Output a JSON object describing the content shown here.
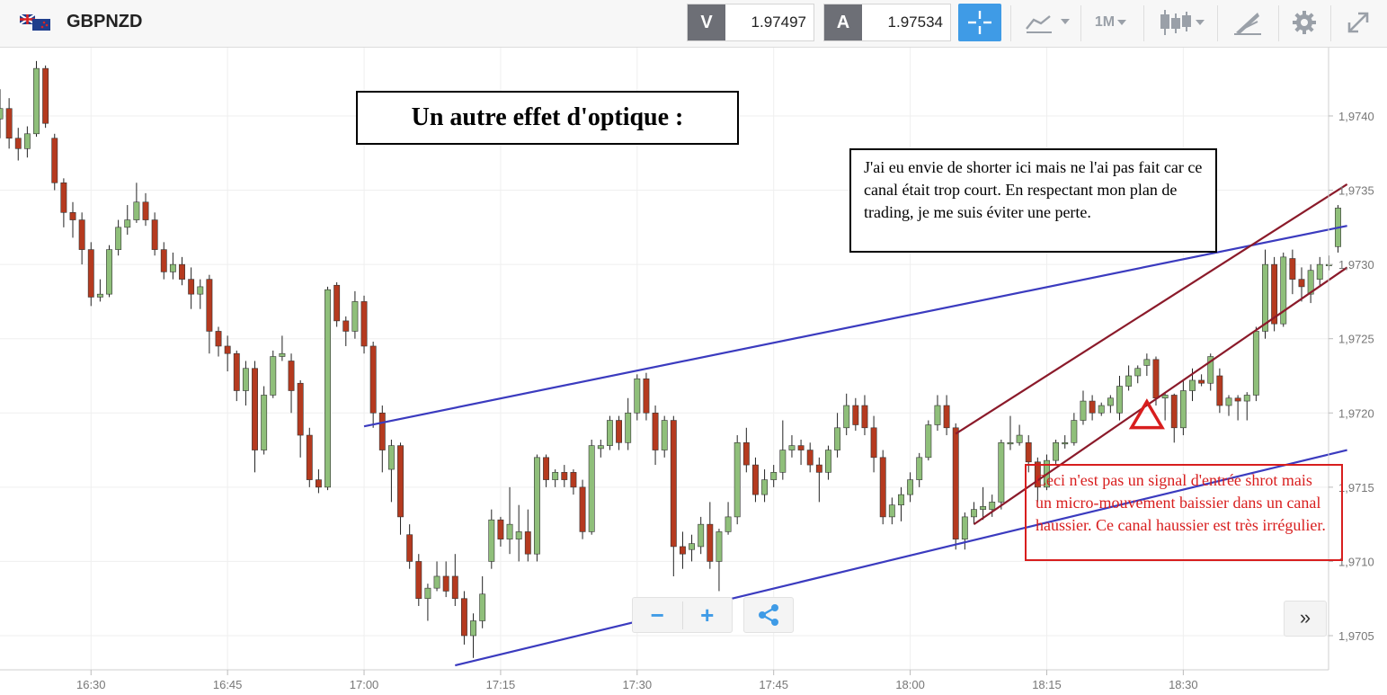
{
  "toolbar": {
    "symbol": "GBPNZD",
    "bid_label": "V",
    "bid_price": "1.97497",
    "ask_label": "A",
    "ask_price": "1.97534",
    "timeframe": "1M",
    "icons": [
      "flag-gb-nz-icon",
      "crosshair-icon",
      "line-chart-icon",
      "candlestick-icon",
      "drawing-tools-icon",
      "gear-icon",
      "fullscreen-icon"
    ]
  },
  "chart_data": {
    "type": "candlestick",
    "symbol": "GBPNZD",
    "interval": "1 minute",
    "current_price_label": "1,97497",
    "y_ticks": [
      "1,9740",
      "1,9735",
      "1,9730",
      "1,9725",
      "1,9720",
      "1,9715",
      "1,9710",
      "1,9705"
    ],
    "x_ticks": [
      "16:30",
      "16:45",
      "17:00",
      "17:15",
      "17:30",
      "17:45",
      "18:00",
      "18:15",
      "18:30"
    ],
    "ylim": [
      1.97027,
      1.97446
    ],
    "x_range": [
      "16:20",
      "18:43"
    ],
    "colors": {
      "up": "#8fbf7a",
      "down": "#b53a1f",
      "wick": "#222222",
      "channel_blue": "#3b3bbf",
      "channel_red": "#8b1a2a",
      "annotation_red": "#d81e1e",
      "price_tag": "#5aaee6"
    },
    "candles": [
      [
        "16:20",
        1.97398,
        1.97405,
        1.97385,
        1.97418
      ],
      [
        "16:21",
        1.97405,
        1.97385,
        1.97378,
        1.97412
      ],
      [
        "16:22",
        1.97385,
        1.97378,
        1.9737,
        1.97392
      ],
      [
        "16:23",
        1.97378,
        1.97388,
        1.97372,
        1.97393
      ],
      [
        "16:24",
        1.97388,
        1.97432,
        1.97386,
        1.97437
      ],
      [
        "16:25",
        1.97432,
        1.97395,
        1.97392,
        1.97434
      ],
      [
        "16:26",
        1.97385,
        1.97355,
        1.9735,
        1.97388
      ],
      [
        "16:27",
        1.97355,
        1.97335,
        1.97325,
        1.97358
      ],
      [
        "16:28",
        1.97335,
        1.9733,
        1.97318,
        1.97342
      ],
      [
        "16:29",
        1.9733,
        1.9731,
        1.973,
        1.97335
      ],
      [
        "16:30",
        1.9731,
        1.97278,
        1.97272,
        1.97315
      ],
      [
        "16:31",
        1.97278,
        1.9728,
        1.97275,
        1.9729
      ],
      [
        "16:32",
        1.9728,
        1.9731,
        1.97278,
        1.97313
      ],
      [
        "16:33",
        1.9731,
        1.97325,
        1.97306,
        1.9733
      ],
      [
        "16:34",
        1.97325,
        1.9733,
        1.9732,
        1.9734
      ],
      [
        "16:35",
        1.9733,
        1.97342,
        1.97328,
        1.97355
      ],
      [
        "16:36",
        1.97342,
        1.9733,
        1.97326,
        1.97348
      ],
      [
        "16:37",
        1.9733,
        1.9731,
        1.97306,
        1.97335
      ],
      [
        "16:38",
        1.9731,
        1.97295,
        1.9729,
        1.97315
      ],
      [
        "16:39",
        1.97295,
        1.973,
        1.9729,
        1.97308
      ],
      [
        "16:40",
        1.973,
        1.9729,
        1.97286,
        1.97305
      ],
      [
        "16:41",
        1.9729,
        1.9728,
        1.9727,
        1.97298
      ],
      [
        "16:42",
        1.9728,
        1.97285,
        1.9727,
        1.9729
      ],
      [
        "16:43",
        1.9729,
        1.97255,
        1.9724,
        1.97293
      ],
      [
        "16:44",
        1.97255,
        1.97245,
        1.97238,
        1.97258
      ],
      [
        "16:45",
        1.97245,
        1.9724,
        1.97228,
        1.97252
      ],
      [
        "16:46",
        1.9724,
        1.97215,
        1.97208,
        1.97242
      ],
      [
        "16:47",
        1.97215,
        1.9723,
        1.97205,
        1.97235
      ],
      [
        "16:48",
        1.9723,
        1.97175,
        1.9716,
        1.97235
      ],
      [
        "16:49",
        1.97175,
        1.97212,
        1.97172,
        1.97218
      ],
      [
        "16:50",
        1.97212,
        1.97238,
        1.9721,
        1.97242
      ],
      [
        "16:51",
        1.97238,
        1.9724,
        1.97235,
        1.97252
      ],
      [
        "16:52",
        1.97235,
        1.97215,
        1.972,
        1.9724
      ],
      [
        "16:53",
        1.9722,
        1.97185,
        1.9717,
        1.97222
      ],
      [
        "16:54",
        1.97185,
        1.97155,
        1.9715,
        1.9719
      ],
      [
        "16:55",
        1.97155,
        1.9715,
        1.97146,
        1.97162
      ],
      [
        "16:56",
        1.9715,
        1.97283,
        1.97148,
        1.97285
      ],
      [
        "16:57",
        1.97286,
        1.97262,
        1.97258,
        1.97288
      ],
      [
        "16:58",
        1.97262,
        1.97255,
        1.97245,
        1.97265
      ],
      [
        "16:59",
        1.97255,
        1.97275,
        1.9725,
        1.97282
      ],
      [
        "17:00",
        1.97275,
        1.97245,
        1.9724,
        1.97279
      ],
      [
        "17:01",
        1.97245,
        1.972,
        1.9719,
        1.97248
      ],
      [
        "17:02",
        1.972,
        1.97175,
        1.9716,
        1.97205
      ],
      [
        "17:03",
        1.97162,
        1.97178,
        1.9714,
        1.97182
      ],
      [
        "17:04",
        1.97178,
        1.9713,
        1.97118,
        1.9718
      ],
      [
        "17:05",
        1.97118,
        1.971,
        1.97095,
        1.97125
      ],
      [
        "17:06",
        1.971,
        1.97075,
        1.9707,
        1.97105
      ],
      [
        "17:07",
        1.97075,
        1.97082,
        1.9706,
        1.97085
      ],
      [
        "17:08",
        1.97082,
        1.9709,
        1.9708,
        1.971
      ],
      [
        "17:09",
        1.9709,
        1.9708,
        1.97076,
        1.971
      ],
      [
        "17:10",
        1.9709,
        1.97075,
        1.9707,
        1.97105
      ],
      [
        "17:11",
        1.97075,
        1.9705,
        1.97044,
        1.9708
      ],
      [
        "17:12",
        1.9705,
        1.9706,
        1.97035,
        1.97065
      ],
      [
        "17:13",
        1.9706,
        1.97078,
        1.97055,
        1.9709
      ],
      [
        "17:14",
        1.971,
        1.97128,
        1.97095,
        1.97135
      ],
      [
        "17:15",
        1.97128,
        1.97115,
        1.9711,
        1.9713
      ],
      [
        "17:16",
        1.97115,
        1.97125,
        1.97105,
        1.9715
      ],
      [
        "17:17",
        1.97115,
        1.9712,
        1.971,
        1.97138
      ],
      [
        "17:18",
        1.9712,
        1.97105,
        1.971,
        1.97135
      ],
      [
        "17:19",
        1.97105,
        1.9717,
        1.971,
        1.97172
      ],
      [
        "17:20",
        1.9717,
        1.97155,
        1.9715,
        1.97172
      ],
      [
        "17:21",
        1.97155,
        1.9716,
        1.9715,
        1.97162
      ],
      [
        "17:22",
        1.9716,
        1.97155,
        1.9715,
        1.97165
      ],
      [
        "17:23",
        1.9716,
        1.9715,
        1.97145,
        1.97162
      ],
      [
        "17:24",
        1.9715,
        1.9712,
        1.97115,
        1.97155
      ],
      [
        "17:25",
        1.9712,
        1.97178,
        1.97118,
        1.97182
      ],
      [
        "17:26",
        1.97176,
        1.97178,
        1.9717,
        1.97182
      ],
      [
        "17:27",
        1.97178,
        1.97195,
        1.97175,
        1.97198
      ],
      [
        "17:28",
        1.97195,
        1.9718,
        1.97175,
        1.97198
      ],
      [
        "17:29",
        1.9718,
        1.972,
        1.97175,
        1.9721
      ],
      [
        "17:30",
        1.972,
        1.97223,
        1.97195,
        1.97226
      ],
      [
        "17:31",
        1.97223,
        1.972,
        1.97195,
        1.97227
      ],
      [
        "17:32",
        1.972,
        1.97175,
        1.97165,
        1.97205
      ],
      [
        "17:33",
        1.97175,
        1.97195,
        1.9717,
        1.97198
      ],
      [
        "17:34",
        1.97195,
        1.9711,
        1.9709,
        1.97198
      ],
      [
        "17:35",
        1.9711,
        1.97105,
        1.97095,
        1.9712
      ],
      [
        "17:36",
        1.97108,
        1.97112,
        1.971,
        1.97118
      ],
      [
        "17:37",
        1.9711,
        1.97125,
        1.97105,
        1.9713
      ],
      [
        "17:38",
        1.97125,
        1.971,
        1.97095,
        1.9714
      ],
      [
        "17:39",
        1.971,
        1.9712,
        1.9708,
        1.97122
      ],
      [
        "17:40",
        1.9712,
        1.9713,
        1.97118,
        1.9714
      ],
      [
        "17:41",
        1.9713,
        1.9718,
        1.97125,
        1.97185
      ],
      [
        "17:42",
        1.9718,
        1.97165,
        1.9716,
        1.9719
      ],
      [
        "17:43",
        1.97165,
        1.97145,
        1.9714,
        1.9717
      ],
      [
        "17:44",
        1.97145,
        1.97155,
        1.9714,
        1.97162
      ],
      [
        "17:45",
        1.97155,
        1.9716,
        1.9715,
        1.97165
      ],
      [
        "17:46",
        1.9716,
        1.97175,
        1.97155,
        1.97195
      ],
      [
        "17:47",
        1.97175,
        1.97178,
        1.9717,
        1.97185
      ],
      [
        "17:48",
        1.97178,
        1.97175,
        1.97165,
        1.97182
      ],
      [
        "17:49",
        1.97175,
        1.97165,
        1.9716,
        1.9718
      ],
      [
        "17:50",
        1.97165,
        1.9716,
        1.9714,
        1.9717
      ],
      [
        "17:51",
        1.9716,
        1.97175,
        1.97155,
        1.97178
      ],
      [
        "17:52",
        1.97175,
        1.9719,
        1.9717,
        1.972
      ],
      [
        "17:53",
        1.9719,
        1.97205,
        1.97185,
        1.97213
      ],
      [
        "17:54",
        1.97205,
        1.97192,
        1.97188,
        1.9721
      ],
      [
        "17:55",
        1.97205,
        1.9719,
        1.97185,
        1.97212
      ],
      [
        "17:56",
        1.9719,
        1.9717,
        1.9716,
        1.97198
      ],
      [
        "17:57",
        1.9717,
        1.9713,
        1.97125,
        1.97175
      ],
      [
        "17:58",
        1.9713,
        1.97138,
        1.97125,
        1.97143
      ],
      [
        "17:59",
        1.97138,
        1.97145,
        1.97127,
        1.9715
      ],
      [
        "18:00",
        1.97145,
        1.97155,
        1.9714,
        1.9716
      ],
      [
        "18:01",
        1.97155,
        1.9717,
        1.9715,
        1.97173
      ],
      [
        "18:02",
        1.9717,
        1.97192,
        1.97168,
        1.97195
      ],
      [
        "18:03",
        1.97192,
        1.97205,
        1.97188,
        1.97212
      ],
      [
        "18:04",
        1.97205,
        1.9719,
        1.97185,
        1.97212
      ],
      [
        "18:05",
        1.9719,
        1.97115,
        1.97108,
        1.97193
      ],
      [
        "18:06",
        1.97115,
        1.9713,
        1.97108,
        1.97133
      ],
      [
        "18:07",
        1.9713,
        1.97135,
        1.97125,
        1.9714
      ],
      [
        "18:08",
        1.97135,
        1.97137,
        1.97128,
        1.9715
      ],
      [
        "18:09",
        1.97135,
        1.9714,
        1.9713,
        1.97145
      ],
      [
        "18:10",
        1.9714,
        1.9718,
        1.97135,
        1.97182
      ],
      [
        "18:11",
        1.9718,
        1.9718,
        1.97175,
        1.97198
      ],
      [
        "18:12",
        1.9718,
        1.97185,
        1.97178,
        1.97192
      ],
      [
        "18:13",
        1.9718,
        1.97167,
        1.9716,
        1.97185
      ],
      [
        "18:14",
        1.97167,
        1.9715,
        1.9714,
        1.9717
      ],
      [
        "18:15",
        1.9715,
        1.97168,
        1.97148,
        1.97172
      ],
      [
        "18:16",
        1.97168,
        1.9718,
        1.97165,
        1.97182
      ],
      [
        "18:17",
        1.9718,
        1.9718,
        1.97176,
        1.97185
      ],
      [
        "18:18",
        1.9718,
        1.97195,
        1.97178,
        1.972
      ],
      [
        "18:19",
        1.97195,
        1.97208,
        1.97192,
        1.97215
      ],
      [
        "18:20",
        1.97208,
        1.972,
        1.97195,
        1.97212
      ],
      [
        "18:21",
        1.972,
        1.97205,
        1.97198,
        1.97207
      ],
      [
        "18:22",
        1.97205,
        1.9721,
        1.972,
        1.97212
      ],
      [
        "18:23",
        1.972,
        1.97218,
        1.97195,
        1.97225
      ],
      [
        "18:24",
        1.97218,
        1.97225,
        1.97215,
        1.97232
      ],
      [
        "18:25",
        1.97225,
        1.9723,
        1.9722,
        1.97232
      ],
      [
        "18:26",
        1.97232,
        1.97236,
        1.97225,
        1.9724
      ],
      [
        "18:27",
        1.97236,
        1.9721,
        1.97205,
        1.97238
      ],
      [
        "18:28",
        1.9721,
        1.97212,
        1.97195,
        1.97214
      ],
      [
        "18:29",
        1.97212,
        1.9719,
        1.9718,
        1.97213
      ],
      [
        "18:30",
        1.9719,
        1.97215,
        1.97185,
        1.97222
      ],
      [
        "18:31",
        1.97215,
        1.97222,
        1.97208,
        1.9723
      ],
      [
        "18:32",
        1.97222,
        1.9722,
        1.97218,
        1.97226
      ],
      [
        "18:33",
        1.9722,
        1.97238,
        1.97215,
        1.9724
      ],
      [
        "18:34",
        1.97225,
        1.97205,
        1.972,
        1.9723
      ],
      [
        "18:35",
        1.97205,
        1.9721,
        1.97198,
        1.97212
      ],
      [
        "18:36",
        1.9721,
        1.97208,
        1.97195,
        1.97212
      ],
      [
        "18:37",
        1.97208,
        1.97212,
        1.97195,
        1.97214
      ],
      [
        "18:38",
        1.97212,
        1.97255,
        1.97208,
        1.97258
      ],
      [
        "18:39",
        1.97255,
        1.973,
        1.9725,
        1.9731
      ],
      [
        "18:40",
        1.973,
        1.9726,
        1.97255,
        1.97305
      ],
      [
        "18:41",
        1.9726,
        1.97305,
        1.97258,
        1.97308
      ],
      [
        "18:42",
        1.97304,
        1.9729,
        1.9728,
        1.9731
      ],
      [
        "18:43",
        1.9729,
        1.97285,
        1.97275,
        1.97298
      ],
      [
        "18:44",
        1.9728,
        1.97296,
        1.97274,
        1.973
      ],
      [
        "18:45",
        1.9729,
        1.973,
        1.97285,
        1.97305
      ],
      [
        "18:46",
        1.973,
        1.973,
        1.97296,
        1.97306
      ],
      [
        "18:47",
        1.97312,
        1.97338,
        1.97308,
        1.9734
      ]
    ],
    "trendlines": [
      {
        "color": "blue",
        "points": [
          [
            "17:00",
            1.97191
          ],
          [
            "18:48",
            1.97326
          ]
        ]
      },
      {
        "color": "blue",
        "points": [
          [
            "17:10",
            1.9703
          ],
          [
            "18:48",
            1.97175
          ]
        ]
      },
      {
        "color": "red",
        "points": [
          [
            "18:05",
            1.97186
          ],
          [
            "18:48",
            1.97354
          ]
        ]
      },
      {
        "color": "red",
        "points": [
          [
            "18:07",
            1.97125
          ],
          [
            "18:48",
            1.97298
          ]
        ]
      }
    ],
    "markers": [
      {
        "shape": "triangle",
        "color": "red",
        "time": "18:26",
        "price": 1.97198
      }
    ]
  },
  "annotations": {
    "title": "Un autre effet d'optique :",
    "note1": "J'ai eu envie de shorter ici mais ne l'ai pas fait car ce canal était trop court. En respectant mon plan de trading, je me suis éviter une perte.",
    "note2": "Ceci n'est pas un signal d'entrée shrot mais un micro-mouvement baissier dans un canal haussier. Ce canal haussier est très irrégulier."
  },
  "controls": {
    "zoom_out": "−",
    "zoom_in": "+",
    "scroll_right": "»"
  }
}
